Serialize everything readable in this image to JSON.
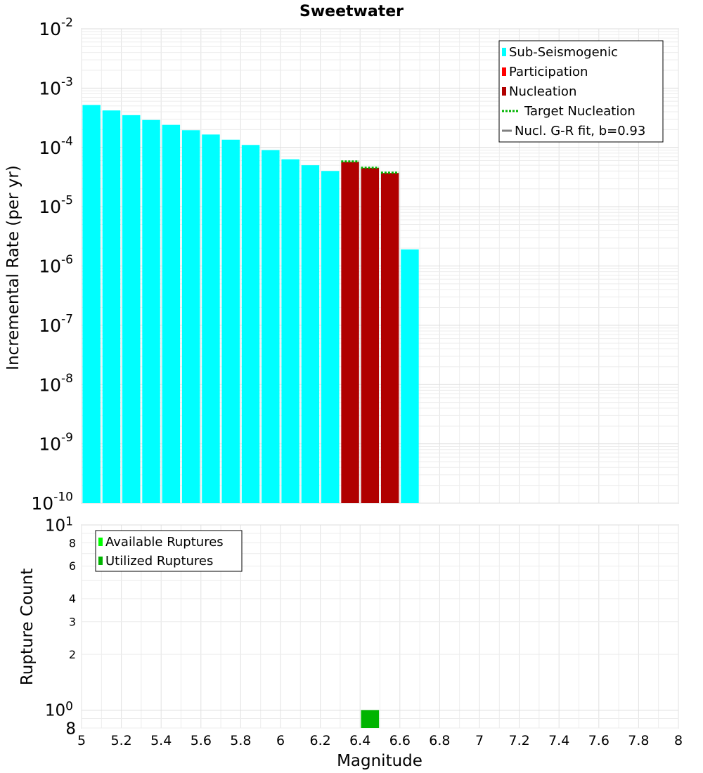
{
  "chart_data": [
    {
      "type": "bar",
      "title": "Sweetwater",
      "xlabel": "",
      "ylabel": "Incremental Rate (per yr)",
      "xlim": [
        5,
        8
      ],
      "ylim": [
        1e-10,
        0.01
      ],
      "yscale": "log",
      "grid": true,
      "bar_width": 0.09,
      "y_tick_labels": [
        {
          "value": 1e-10,
          "base": "10",
          "exp": "-10"
        },
        {
          "value": 1e-09,
          "base": "10",
          "exp": "-9"
        },
        {
          "value": 1e-08,
          "base": "10",
          "exp": "-8"
        },
        {
          "value": 1e-07,
          "base": "10",
          "exp": "-7"
        },
        {
          "value": 1e-06,
          "base": "10",
          "exp": "-6"
        },
        {
          "value": 1e-05,
          "base": "10",
          "exp": "-5"
        },
        {
          "value": 0.0001,
          "base": "10",
          "exp": "-4"
        },
        {
          "value": 0.001,
          "base": "10",
          "exp": "-3"
        },
        {
          "value": 0.01,
          "base": "10",
          "exp": "-2"
        }
      ],
      "series": [
        {
          "name": "Sub-Seismogenic",
          "color": "#00ffff",
          "x": [
            5.05,
            5.15,
            5.25,
            5.35,
            5.45,
            5.55,
            5.65,
            5.75,
            5.85,
            5.95,
            6.05,
            6.15,
            6.25,
            6.65
          ],
          "values": [
            0.00052,
            0.00042,
            0.00035,
            0.00029,
            0.00024,
            0.000195,
            0.000165,
            0.000135,
            0.00011,
            9e-05,
            6.3e-05,
            5e-05,
            4e-05,
            1.9e-06
          ]
        },
        {
          "name": "Participation",
          "color": "#ff0000",
          "x": [],
          "values": []
        },
        {
          "name": "Nucleation",
          "color": "#b00000",
          "x": [
            6.35,
            6.45,
            6.55
          ],
          "values": [
            5.7e-05,
            4.5e-05,
            3.7e-05
          ]
        },
        {
          "name": "Target Nucleation",
          "color": "#00b400",
          "style": "dotted",
          "x": [
            6.35,
            6.45,
            6.55
          ],
          "values": [
            5.8e-05,
            4.55e-05,
            3.75e-05
          ]
        },
        {
          "name": "Nucl. G-R fit, b=0.93",
          "color": "#808080",
          "style": "solid",
          "x": [],
          "values": []
        }
      ],
      "legend": "top-right"
    },
    {
      "type": "bar",
      "title": "",
      "xlabel": "Magnitude",
      "ylabel": "Rupture Count",
      "xlim": [
        5,
        8
      ],
      "ylim": [
        0.8,
        10
      ],
      "yscale": "log",
      "grid": true,
      "bar_width": 0.09,
      "x_ticks": [
        "5",
        "5.2",
        "5.4",
        "5.6",
        "5.8",
        "6",
        "6.2",
        "6.4",
        "6.6",
        "6.8",
        "7",
        "7.2",
        "7.4",
        "7.6",
        "7.8",
        "8"
      ],
      "y_tick_labels": [
        {
          "value": 0.8,
          "base": "8",
          "exp": ""
        },
        {
          "value": 1,
          "base": "10",
          "exp": "0"
        },
        {
          "value": 2,
          "base": "2",
          "exp": ""
        },
        {
          "value": 3,
          "base": "3",
          "exp": ""
        },
        {
          "value": 4,
          "base": "4",
          "exp": ""
        },
        {
          "value": 6,
          "base": "6",
          "exp": ""
        },
        {
          "value": 8,
          "base": "8",
          "exp": ""
        },
        {
          "value": 10,
          "base": "10",
          "exp": "1"
        }
      ],
      "series": [
        {
          "name": "Available Ruptures",
          "color": "#00ff00",
          "x": [
            6.45
          ],
          "values": [
            1
          ]
        },
        {
          "name": "Utilized Ruptures",
          "color": "#00b400",
          "x": [
            6.45
          ],
          "values": [
            1
          ]
        }
      ],
      "legend": "top-left"
    }
  ]
}
